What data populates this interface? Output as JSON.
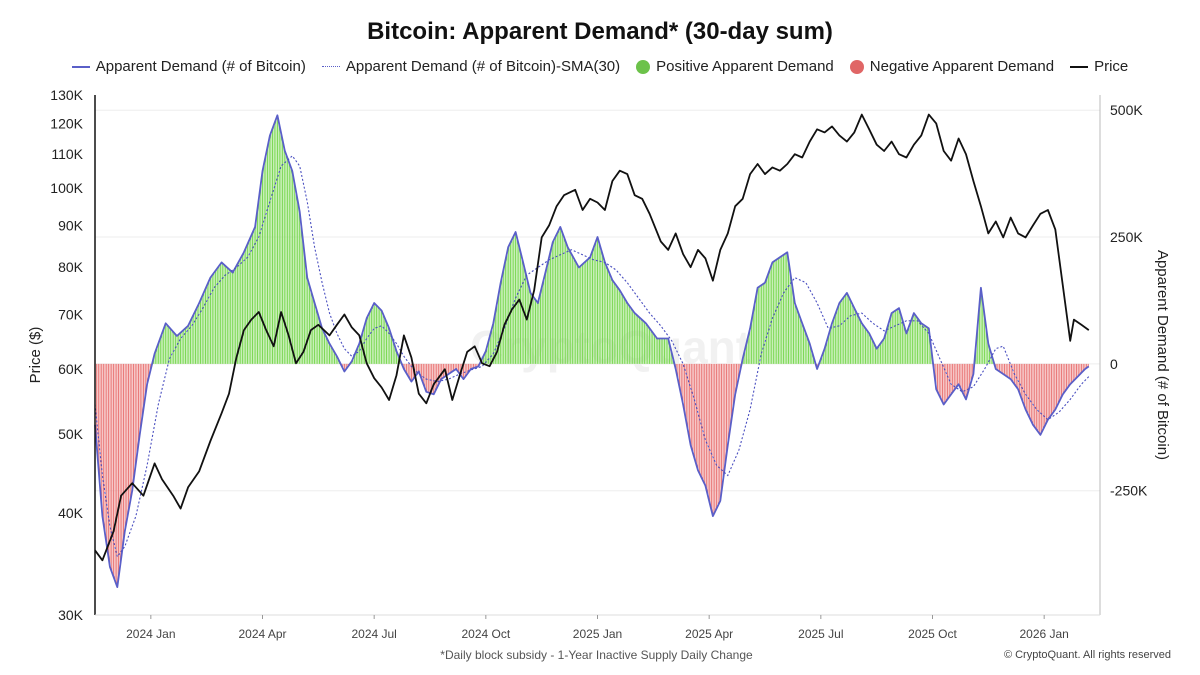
{
  "chart_data": {
    "type": "bar-line-combo",
    "title": "Bitcoin: Apparent Demand* (30-day sum)",
    "legend": [
      {
        "name": "Apparent Demand (# of Bitcoin)",
        "swatch": "line",
        "color": "#5a5fc8"
      },
      {
        "name": "Apparent Demand (# of Bitcoin)-SMA(30)",
        "swatch": "dotted",
        "color": "#5a5fc8"
      },
      {
        "name": "Positive Apparent Demand",
        "swatch": "circle",
        "color": "#6cc24a"
      },
      {
        "name": "Negative Apparent Demand",
        "swatch": "circle",
        "color": "#e06666"
      },
      {
        "name": "Price",
        "swatch": "line",
        "color": "#111111"
      }
    ],
    "left_axis": {
      "label": "Price ($)",
      "scale": "log",
      "range": [
        30000,
        130000
      ],
      "ticks": [
        "30K",
        "40K",
        "50K",
        "60K",
        "70K",
        "80K",
        "90K",
        "100K",
        "110K",
        "120K",
        "130K"
      ],
      "tick_values": [
        30000,
        40000,
        50000,
        60000,
        70000,
        80000,
        90000,
        100000,
        110000,
        120000,
        130000
      ]
    },
    "right_axis": {
      "label": "Apparent Demand (# of Bitcoin)",
      "range": [
        -495000,
        530000
      ],
      "ticks": [
        "500K",
        "250K",
        "0",
        "-250K"
      ],
      "tick_values": [
        500000,
        250000,
        0,
        -250000
      ]
    },
    "x_axis": {
      "ticks": [
        "2024 Jan",
        "2024 Apr",
        "2024 Jul",
        "2024 Oct",
        "2025 Jan",
        "2025 Apr",
        "2025 Jul",
        "2025 Oct",
        "2026 Jan"
      ],
      "tick_months": [
        1,
        4,
        7,
        10,
        13,
        16,
        19,
        22,
        25
      ],
      "range_months": [
        -0.5,
        26.5
      ]
    },
    "price": [
      [
        -0.5,
        36000
      ],
      [
        -0.3,
        35000
      ],
      [
        0,
        38000
      ],
      [
        0.2,
        42000
      ],
      [
        0.5,
        43500
      ],
      [
        0.8,
        42000
      ],
      [
        1.1,
        46000
      ],
      [
        1.3,
        44000
      ],
      [
        1.6,
        42000
      ],
      [
        1.8,
        40500
      ],
      [
        2.0,
        43000
      ],
      [
        2.3,
        45000
      ],
      [
        2.6,
        49000
      ],
      [
        2.9,
        53000
      ],
      [
        3.1,
        56000
      ],
      [
        3.3,
        62000
      ],
      [
        3.5,
        67000
      ],
      [
        3.7,
        69000
      ],
      [
        3.9,
        70500
      ],
      [
        4.1,
        67000
      ],
      [
        4.3,
        64000
      ],
      [
        4.5,
        70500
      ],
      [
        4.7,
        66000
      ],
      [
        4.9,
        61000
      ],
      [
        5.1,
        63000
      ],
      [
        5.3,
        67000
      ],
      [
        5.5,
        68000
      ],
      [
        5.8,
        66000
      ],
      [
        6.0,
        68000
      ],
      [
        6.2,
        70000
      ],
      [
        6.4,
        67500
      ],
      [
        6.6,
        66000
      ],
      [
        6.8,
        61000
      ],
      [
        7.0,
        58500
      ],
      [
        7.2,
        57000
      ],
      [
        7.4,
        55000
      ],
      [
        7.6,
        59000
      ],
      [
        7.8,
        66000
      ],
      [
        8.0,
        62000
      ],
      [
        8.2,
        56000
      ],
      [
        8.4,
        54500
      ],
      [
        8.6,
        57500
      ],
      [
        8.9,
        60000
      ],
      [
        9.1,
        55000
      ],
      [
        9.3,
        59000
      ],
      [
        9.5,
        63000
      ],
      [
        9.7,
        64000
      ],
      [
        9.9,
        61000
      ],
      [
        10.1,
        60500
      ],
      [
        10.3,
        63000
      ],
      [
        10.5,
        68000
      ],
      [
        10.7,
        71000
      ],
      [
        10.9,
        73000
      ],
      [
        11.1,
        69000
      ],
      [
        11.3,
        75000
      ],
      [
        11.5,
        87000
      ],
      [
        11.7,
        90000
      ],
      [
        11.9,
        95000
      ],
      [
        12.1,
        98000
      ],
      [
        12.4,
        99500
      ],
      [
        12.6,
        94000
      ],
      [
        12.8,
        97000
      ],
      [
        13.0,
        96000
      ],
      [
        13.2,
        94000
      ],
      [
        13.4,
        102000
      ],
      [
        13.6,
        105000
      ],
      [
        13.8,
        104000
      ],
      [
        14.0,
        98000
      ],
      [
        14.2,
        97000
      ],
      [
        14.4,
        93000
      ],
      [
        14.7,
        86000
      ],
      [
        14.9,
        84000
      ],
      [
        15.1,
        88000
      ],
      [
        15.3,
        83000
      ],
      [
        15.5,
        80000
      ],
      [
        15.7,
        84000
      ],
      [
        15.9,
        82000
      ],
      [
        16.1,
        77000
      ],
      [
        16.3,
        84000
      ],
      [
        16.5,
        88000
      ],
      [
        16.7,
        95000
      ],
      [
        16.9,
        97000
      ],
      [
        17.1,
        104000
      ],
      [
        17.3,
        107000
      ],
      [
        17.5,
        104000
      ],
      [
        17.7,
        106000
      ],
      [
        17.9,
        105000
      ],
      [
        18.1,
        107000
      ],
      [
        18.3,
        110000
      ],
      [
        18.5,
        109000
      ],
      [
        18.7,
        114000
      ],
      [
        18.9,
        118000
      ],
      [
        19.1,
        117000
      ],
      [
        19.3,
        119000
      ],
      [
        19.5,
        116000
      ],
      [
        19.7,
        114000
      ],
      [
        19.9,
        117000
      ],
      [
        20.1,
        123000
      ],
      [
        20.3,
        118000
      ],
      [
        20.5,
        113000
      ],
      [
        20.7,
        111000
      ],
      [
        20.9,
        114000
      ],
      [
        21.1,
        110000
      ],
      [
        21.3,
        109000
      ],
      [
        21.5,
        113000
      ],
      [
        21.7,
        116000
      ],
      [
        21.9,
        123000
      ],
      [
        22.1,
        120000
      ],
      [
        22.3,
        111000
      ],
      [
        22.5,
        108000
      ],
      [
        22.7,
        115000
      ],
      [
        22.9,
        110000
      ],
      [
        23.1,
        102000
      ],
      [
        23.3,
        95000
      ],
      [
        23.5,
        88000
      ],
      [
        23.7,
        91000
      ],
      [
        23.9,
        87000
      ],
      [
        24.1,
        92000
      ],
      [
        24.3,
        88000
      ],
      [
        24.5,
        87000
      ],
      [
        24.7,
        90000
      ],
      [
        24.9,
        93000
      ],
      [
        25.1,
        94000
      ],
      [
        25.3,
        89000
      ],
      [
        25.5,
        76000
      ],
      [
        25.7,
        65000
      ],
      [
        25.8,
        69000
      ],
      [
        26.0,
        68000
      ],
      [
        26.2,
        67000
      ]
    ],
    "demand": [
      [
        -0.5,
        -120000
      ],
      [
        -0.3,
        -300000
      ],
      [
        -0.1,
        -400000
      ],
      [
        0.1,
        -440000
      ],
      [
        0.3,
        -330000
      ],
      [
        0.5,
        -250000
      ],
      [
        0.7,
        -140000
      ],
      [
        0.9,
        -40000
      ],
      [
        1.1,
        20000
      ],
      [
        1.4,
        80000
      ],
      [
        1.7,
        55000
      ],
      [
        2.0,
        75000
      ],
      [
        2.3,
        120000
      ],
      [
        2.6,
        170000
      ],
      [
        2.9,
        200000
      ],
      [
        3.2,
        180000
      ],
      [
        3.5,
        220000
      ],
      [
        3.8,
        270000
      ],
      [
        4.0,
        380000
      ],
      [
        4.2,
        450000
      ],
      [
        4.4,
        490000
      ],
      [
        4.6,
        420000
      ],
      [
        4.8,
        380000
      ],
      [
        5.0,
        300000
      ],
      [
        5.2,
        170000
      ],
      [
        5.4,
        120000
      ],
      [
        5.6,
        70000
      ],
      [
        5.8,
        40000
      ],
      [
        6.0,
        15000
      ],
      [
        6.2,
        -15000
      ],
      [
        6.4,
        5000
      ],
      [
        6.6,
        40000
      ],
      [
        6.8,
        90000
      ],
      [
        7.0,
        120000
      ],
      [
        7.2,
        105000
      ],
      [
        7.4,
        70000
      ],
      [
        7.6,
        25000
      ],
      [
        7.8,
        -10000
      ],
      [
        8.0,
        -35000
      ],
      [
        8.2,
        -15000
      ],
      [
        8.4,
        -55000
      ],
      [
        8.6,
        -60000
      ],
      [
        8.8,
        -30000
      ],
      [
        9.0,
        -20000
      ],
      [
        9.2,
        -10000
      ],
      [
        9.4,
        -30000
      ],
      [
        9.6,
        -10000
      ],
      [
        9.8,
        -5000
      ],
      [
        10.0,
        25000
      ],
      [
        10.2,
        80000
      ],
      [
        10.4,
        160000
      ],
      [
        10.6,
        230000
      ],
      [
        10.8,
        260000
      ],
      [
        11.0,
        200000
      ],
      [
        11.2,
        140000
      ],
      [
        11.4,
        120000
      ],
      [
        11.6,
        180000
      ],
      [
        11.8,
        240000
      ],
      [
        12.0,
        270000
      ],
      [
        12.2,
        230000
      ],
      [
        12.5,
        190000
      ],
      [
        12.8,
        210000
      ],
      [
        13.0,
        250000
      ],
      [
        13.2,
        200000
      ],
      [
        13.4,
        165000
      ],
      [
        13.6,
        145000
      ],
      [
        13.8,
        120000
      ],
      [
        14.0,
        100000
      ],
      [
        14.3,
        80000
      ],
      [
        14.6,
        50000
      ],
      [
        14.9,
        50000
      ],
      [
        15.1,
        -10000
      ],
      [
        15.3,
        -80000
      ],
      [
        15.5,
        -160000
      ],
      [
        15.7,
        -210000
      ],
      [
        15.9,
        -240000
      ],
      [
        16.1,
        -300000
      ],
      [
        16.3,
        -270000
      ],
      [
        16.5,
        -160000
      ],
      [
        16.7,
        -60000
      ],
      [
        16.9,
        10000
      ],
      [
        17.1,
        70000
      ],
      [
        17.3,
        150000
      ],
      [
        17.5,
        160000
      ],
      [
        17.7,
        200000
      ],
      [
        17.9,
        210000
      ],
      [
        18.1,
        220000
      ],
      [
        18.3,
        120000
      ],
      [
        18.5,
        80000
      ],
      [
        18.7,
        40000
      ],
      [
        18.9,
        -10000
      ],
      [
        19.1,
        30000
      ],
      [
        19.3,
        80000
      ],
      [
        19.5,
        120000
      ],
      [
        19.7,
        140000
      ],
      [
        19.9,
        110000
      ],
      [
        20.1,
        80000
      ],
      [
        20.3,
        60000
      ],
      [
        20.5,
        30000
      ],
      [
        20.7,
        50000
      ],
      [
        20.9,
        100000
      ],
      [
        21.1,
        110000
      ],
      [
        21.3,
        60000
      ],
      [
        21.5,
        100000
      ],
      [
        21.7,
        80000
      ],
      [
        21.9,
        70000
      ],
      [
        22.1,
        -50000
      ],
      [
        22.3,
        -80000
      ],
      [
        22.5,
        -60000
      ],
      [
        22.7,
        -40000
      ],
      [
        22.9,
        -70000
      ],
      [
        23.1,
        -20000
      ],
      [
        23.3,
        150000
      ],
      [
        23.5,
        40000
      ],
      [
        23.7,
        -10000
      ],
      [
        23.9,
        -20000
      ],
      [
        24.1,
        -30000
      ],
      [
        24.3,
        -50000
      ],
      [
        24.5,
        -90000
      ],
      [
        24.7,
        -120000
      ],
      [
        24.9,
        -140000
      ],
      [
        25.1,
        -110000
      ],
      [
        25.3,
        -90000
      ],
      [
        25.5,
        -60000
      ],
      [
        25.7,
        -40000
      ],
      [
        25.9,
        -25000
      ],
      [
        26.1,
        -10000
      ],
      [
        26.2,
        -5000
      ]
    ],
    "sma": [
      [
        -0.5,
        -80000
      ],
      [
        -0.3,
        -220000
      ],
      [
        -0.1,
        -320000
      ],
      [
        0.1,
        -380000
      ],
      [
        0.3,
        -360000
      ],
      [
        0.6,
        -300000
      ],
      [
        0.9,
        -200000
      ],
      [
        1.2,
        -80000
      ],
      [
        1.5,
        10000
      ],
      [
        1.8,
        50000
      ],
      [
        2.1,
        75000
      ],
      [
        2.4,
        110000
      ],
      [
        2.7,
        150000
      ],
      [
        3.0,
        175000
      ],
      [
        3.3,
        190000
      ],
      [
        3.6,
        210000
      ],
      [
        3.9,
        250000
      ],
      [
        4.2,
        320000
      ],
      [
        4.5,
        390000
      ],
      [
        4.8,
        410000
      ],
      [
        5.0,
        390000
      ],
      [
        5.2,
        320000
      ],
      [
        5.4,
        230000
      ],
      [
        5.6,
        160000
      ],
      [
        5.8,
        100000
      ],
      [
        6.0,
        60000
      ],
      [
        6.2,
        30000
      ],
      [
        6.4,
        15000
      ],
      [
        6.6,
        25000
      ],
      [
        6.8,
        50000
      ],
      [
        7.0,
        70000
      ],
      [
        7.2,
        75000
      ],
      [
        7.4,
        60000
      ],
      [
        7.6,
        40000
      ],
      [
        7.8,
        15000
      ],
      [
        8.0,
        -5000
      ],
      [
        8.2,
        -20000
      ],
      [
        8.4,
        -30000
      ],
      [
        8.7,
        -35000
      ],
      [
        9.0,
        -30000
      ],
      [
        9.3,
        -20000
      ],
      [
        9.6,
        -12000
      ],
      [
        9.9,
        -5000
      ],
      [
        10.2,
        20000
      ],
      [
        10.5,
        70000
      ],
      [
        10.8,
        130000
      ],
      [
        11.1,
        175000
      ],
      [
        11.4,
        190000
      ],
      [
        11.7,
        205000
      ],
      [
        12.0,
        215000
      ],
      [
        12.3,
        225000
      ],
      [
        12.6,
        215000
      ],
      [
        12.9,
        205000
      ],
      [
        13.2,
        200000
      ],
      [
        13.5,
        185000
      ],
      [
        13.8,
        160000
      ],
      [
        14.1,
        130000
      ],
      [
        14.4,
        100000
      ],
      [
        14.7,
        75000
      ],
      [
        15.0,
        45000
      ],
      [
        15.3,
        0
      ],
      [
        15.6,
        -70000
      ],
      [
        15.9,
        -150000
      ],
      [
        16.2,
        -200000
      ],
      [
        16.5,
        -220000
      ],
      [
        16.8,
        -170000
      ],
      [
        17.1,
        -90000
      ],
      [
        17.4,
        20000
      ],
      [
        17.7,
        90000
      ],
      [
        18.0,
        140000
      ],
      [
        18.3,
        170000
      ],
      [
        18.6,
        160000
      ],
      [
        18.9,
        120000
      ],
      [
        19.2,
        70000
      ],
      [
        19.5,
        75000
      ],
      [
        19.8,
        95000
      ],
      [
        20.1,
        100000
      ],
      [
        20.4,
        80000
      ],
      [
        20.7,
        65000
      ],
      [
        21.0,
        75000
      ],
      [
        21.3,
        85000
      ],
      [
        21.6,
        85000
      ],
      [
        21.9,
        60000
      ],
      [
        22.2,
        10000
      ],
      [
        22.5,
        -40000
      ],
      [
        22.8,
        -55000
      ],
      [
        23.1,
        -45000
      ],
      [
        23.4,
        -10000
      ],
      [
        23.7,
        30000
      ],
      [
        23.9,
        35000
      ],
      [
        24.2,
        -20000
      ],
      [
        24.5,
        -60000
      ],
      [
        24.8,
        -90000
      ],
      [
        25.1,
        -110000
      ],
      [
        25.4,
        -95000
      ],
      [
        25.7,
        -70000
      ],
      [
        26.0,
        -40000
      ],
      [
        26.2,
        -25000
      ]
    ],
    "footnote": "*Daily block subsidy - 1-Year Inactive Supply Daily Change",
    "copyright": "© CryptoQuant. All rights reserved",
    "watermark": "CryptoQuant"
  }
}
